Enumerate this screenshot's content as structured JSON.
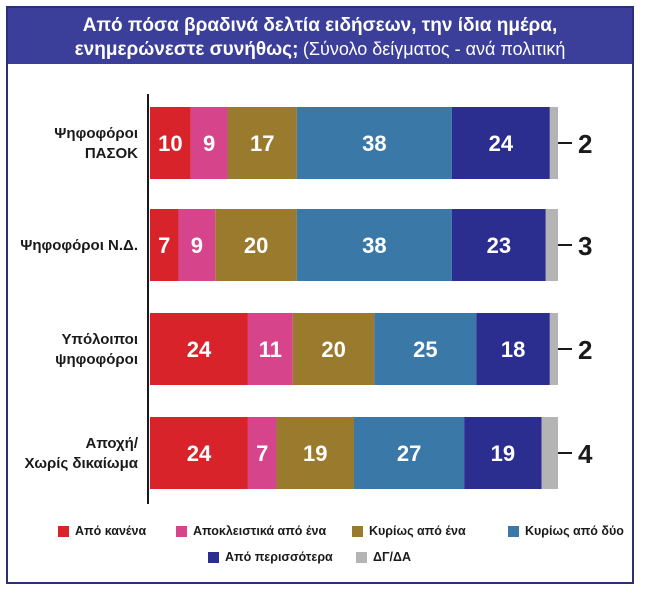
{
  "title": {
    "bold": "Από πόσα βραδινά δελτία ειδήσεων, την ίδια ημέρα, ενημερώνεστε συνήθως;",
    "sub": "(Σύνολο δείγματος - ανά πολιτική συμπεριφορά)"
  },
  "colors": {
    "Από κανένα": "#d8232a",
    "Αποκλειστικά από ένα": "#d6458c",
    "Κυρίως από ένα": "#9a7a2c",
    "Κυρίως από δύο": "#3a78a8",
    "Από περισσότερα": "#2c2e8f",
    "ΔΓ/ΔΑ": "#b4b4b4"
  },
  "chart_data": {
    "type": "bar",
    "orientation": "horizontal",
    "stacked": true,
    "unit": "%",
    "categories": [
      [
        "Ψηφοφόροι",
        "ΠΑΣΟΚ"
      ],
      [
        "Ψηφοφόροι Ν.Δ."
      ],
      [
        "Υπόλοιποι",
        "ψηφοφόροι"
      ],
      [
        "Αποχή/",
        "Χωρίς δικαίωμα"
      ]
    ],
    "series": [
      {
        "name": "Από κανένα",
        "values": [
          10,
          7,
          24,
          24
        ]
      },
      {
        "name": "Αποκλειστικά από ένα",
        "values": [
          9,
          9,
          11,
          7
        ]
      },
      {
        "name": "Κυρίως από ένα",
        "values": [
          17,
          20,
          20,
          19
        ]
      },
      {
        "name": "Κυρίως από δύο",
        "values": [
          38,
          38,
          25,
          27
        ]
      },
      {
        "name": "Από περισσότερα",
        "values": [
          24,
          23,
          18,
          19
        ]
      },
      {
        "name": "ΔΓ/ΔΑ",
        "values": [
          2,
          3,
          2,
          4
        ]
      }
    ],
    "legend_position": "bottom"
  }
}
